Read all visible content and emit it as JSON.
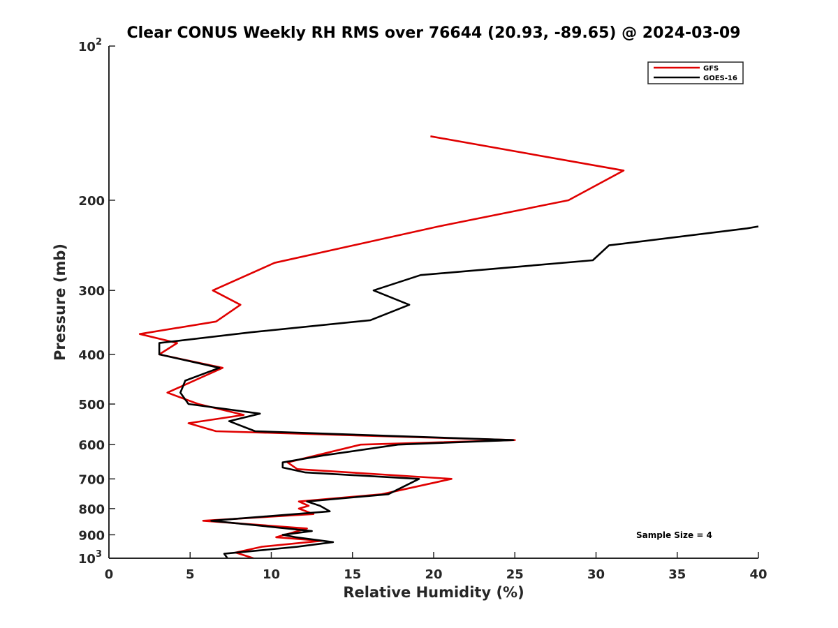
{
  "chart_data": {
    "type": "line",
    "title": "Clear CONUS Weekly RH RMS over 76644 (20.93, -89.65) @ 2024-03-09",
    "xlabel": "Relative Humidity (%)",
    "ylabel": "Pressure (mb)",
    "xlim": [
      0,
      40
    ],
    "ylim": [
      100,
      1000
    ],
    "y_scale": "log",
    "y_reversed": true,
    "x_ticks": [
      0,
      5,
      10,
      15,
      20,
      25,
      30,
      35,
      40
    ],
    "y_ticks": [
      {
        "value": 100,
        "label": "10",
        "exp": "2"
      },
      {
        "value": 200,
        "label": "200",
        "exp": ""
      },
      {
        "value": 300,
        "label": "300",
        "exp": ""
      },
      {
        "value": 400,
        "label": "400",
        "exp": ""
      },
      {
        "value": 500,
        "label": "500",
        "exp": ""
      },
      {
        "value": 600,
        "label": "600",
        "exp": ""
      },
      {
        "value": 700,
        "label": "700",
        "exp": ""
      },
      {
        "value": 800,
        "label": "800",
        "exp": ""
      },
      {
        "value": 900,
        "label": "900",
        "exp": ""
      },
      {
        "value": 1000,
        "label": "10",
        "exp": "3"
      }
    ],
    "legend_position": "top-right",
    "annotation": "Sample Size = 4",
    "series": [
      {
        "name": "GFS",
        "color": "#e00000",
        "points": [
          [
            19.8,
            150
          ],
          [
            31.7,
            175
          ],
          [
            28.3,
            200
          ],
          [
            20.3,
            225
          ],
          [
            10.2,
            265
          ],
          [
            6.4,
            300
          ],
          [
            8.1,
            320
          ],
          [
            6.6,
            345
          ],
          [
            1.9,
            365
          ],
          [
            4.2,
            380
          ],
          [
            3.1,
            400
          ],
          [
            7.0,
            425
          ],
          [
            3.6,
            475
          ],
          [
            5.5,
            500
          ],
          [
            8.3,
            525
          ],
          [
            4.9,
            545
          ],
          [
            6.6,
            565
          ],
          [
            25.0,
            588
          ],
          [
            15.5,
            600
          ],
          [
            11.0,
            650
          ],
          [
            11.6,
            670
          ],
          [
            21.1,
            700
          ],
          [
            16.8,
            750
          ],
          [
            11.7,
            775
          ],
          [
            12.3,
            790
          ],
          [
            11.7,
            800
          ],
          [
            12.6,
            820
          ],
          [
            5.8,
            845
          ],
          [
            12.2,
            875
          ],
          [
            10.3,
            910
          ],
          [
            13.1,
            925
          ],
          [
            9.4,
            950
          ],
          [
            7.8,
            975
          ],
          [
            8.9,
            1000
          ]
        ]
      },
      {
        "name": "GOES-16",
        "color": "#000000",
        "points": [
          [
            40.0,
            225
          ],
          [
            39.3,
            227
          ],
          [
            30.8,
            245
          ],
          [
            29.8,
            262
          ],
          [
            19.2,
            280
          ],
          [
            16.3,
            300
          ],
          [
            18.5,
            320
          ],
          [
            16.1,
            343
          ],
          [
            8.8,
            362
          ],
          [
            3.1,
            380
          ],
          [
            3.1,
            400
          ],
          [
            6.8,
            425
          ],
          [
            4.7,
            450
          ],
          [
            4.4,
            475
          ],
          [
            4.9,
            500
          ],
          [
            9.3,
            522
          ],
          [
            7.4,
            540
          ],
          [
            9.0,
            565
          ],
          [
            24.9,
            588
          ],
          [
            17.8,
            600
          ],
          [
            13.2,
            630
          ],
          [
            10.7,
            650
          ],
          [
            10.7,
            665
          ],
          [
            12.1,
            680
          ],
          [
            19.1,
            700
          ],
          [
            17.2,
            750
          ],
          [
            12.2,
            775
          ],
          [
            13.0,
            790
          ],
          [
            13.6,
            810
          ],
          [
            6.3,
            845
          ],
          [
            8.7,
            860
          ],
          [
            12.5,
            885
          ],
          [
            10.7,
            900
          ],
          [
            11.5,
            910
          ],
          [
            13.8,
            930
          ],
          [
            11.6,
            950
          ],
          [
            7.1,
            980
          ],
          [
            7.3,
            1000
          ]
        ]
      }
    ]
  }
}
